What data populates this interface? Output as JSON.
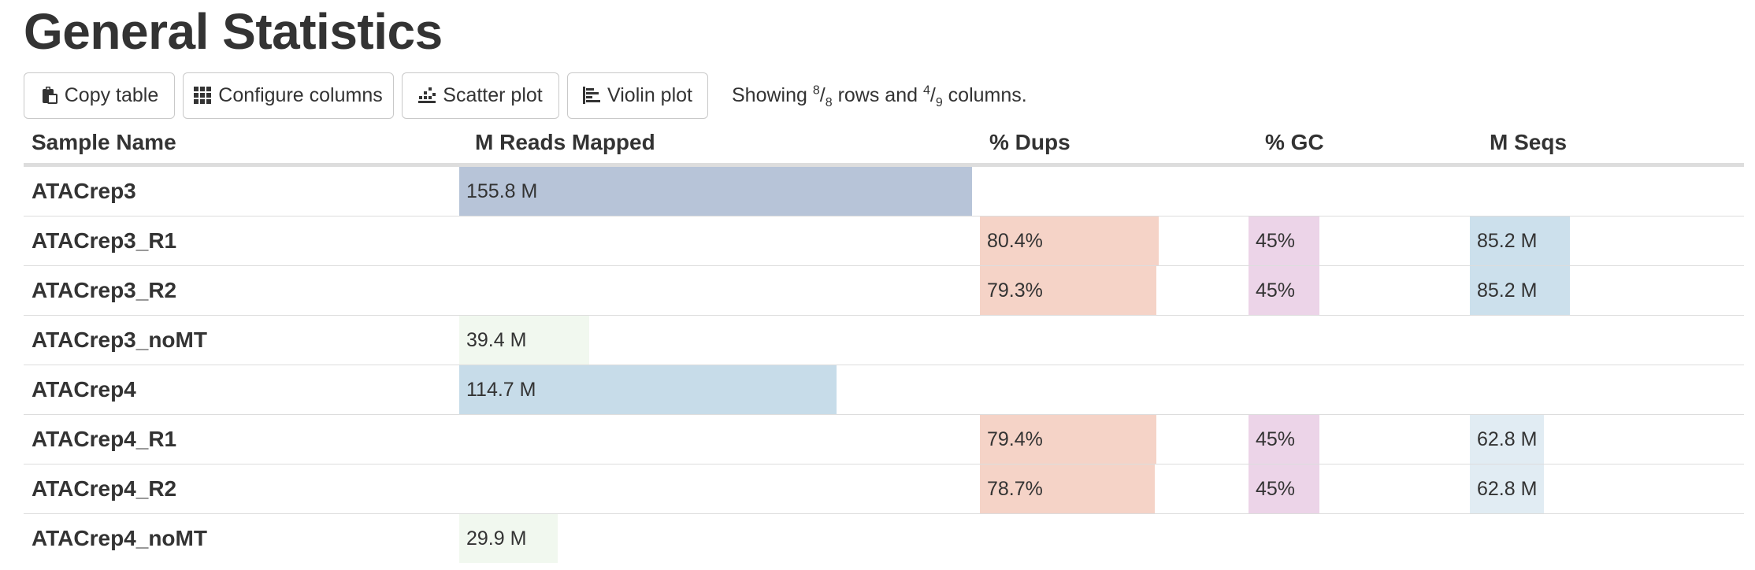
{
  "page": {
    "title": "General Statistics"
  },
  "toolbar": {
    "copy_label": "Copy table",
    "configure_label": "Configure columns",
    "scatter_label": "Scatter plot",
    "violin_label": "Violin plot",
    "showing": {
      "prefix": "Showing ",
      "rows_shown": "8",
      "rows_total": "8",
      "middle": " rows and ",
      "cols_shown": "4",
      "cols_total": "9",
      "suffix": " columns."
    }
  },
  "colors": {
    "reads_mapped_high": "#b7c4d8",
    "reads_mapped_mid": "#c7dce9",
    "reads_mapped_low": "#f1f8ef",
    "dups": "#f5d3c7",
    "gc": "#ecd4e8",
    "seqs_high": "#cce0ec",
    "seqs_low": "#e1ecf3"
  },
  "table": {
    "columns": [
      {
        "key": "sample",
        "label": "Sample Name"
      },
      {
        "key": "reads_mapped",
        "label": "M Reads Mapped"
      },
      {
        "key": "dups",
        "label": "% Dups"
      },
      {
        "key": "gc",
        "label": "% GC"
      },
      {
        "key": "seqs",
        "label": "M Seqs"
      }
    ],
    "rows": [
      {
        "sample": "ATACrep3",
        "reads_mapped": {
          "text": "155.8 M",
          "fill": 1.0,
          "color": "#b7c4d8"
        },
        "dups": null,
        "gc": null,
        "seqs": null
      },
      {
        "sample": "ATACrep3_R1",
        "reads_mapped": null,
        "dups": {
          "text": "80.4%",
          "fill": 0.804,
          "color": "#f5d3c7"
        },
        "gc": {
          "text": "45%",
          "fill": 0.45,
          "color": "#ecd4e8"
        },
        "seqs": {
          "text": "85.2 M",
          "fill": 0.547,
          "color": "#cce0ec"
        }
      },
      {
        "sample": "ATACrep3_R2",
        "reads_mapped": null,
        "dups": {
          "text": "79.3%",
          "fill": 0.793,
          "color": "#f5d3c7"
        },
        "gc": {
          "text": "45%",
          "fill": 0.45,
          "color": "#ecd4e8"
        },
        "seqs": {
          "text": "85.2 M",
          "fill": 0.547,
          "color": "#cce0ec"
        }
      },
      {
        "sample": "ATACrep3_noMT",
        "reads_mapped": {
          "text": "39.4 M",
          "fill": 0.253,
          "color": "#f1f8ef"
        },
        "dups": null,
        "gc": null,
        "seqs": null
      },
      {
        "sample": "ATACrep4",
        "reads_mapped": {
          "text": "114.7 M",
          "fill": 0.736,
          "color": "#c7dce9"
        },
        "dups": null,
        "gc": null,
        "seqs": null
      },
      {
        "sample": "ATACrep4_R1",
        "reads_mapped": null,
        "dups": {
          "text": "79.4%",
          "fill": 0.794,
          "color": "#f5d3c7"
        },
        "gc": {
          "text": "45%",
          "fill": 0.45,
          "color": "#ecd4e8"
        },
        "seqs": {
          "text": "62.8 M",
          "fill": 0.403,
          "color": "#e1ecf3"
        }
      },
      {
        "sample": "ATACrep4_R2",
        "reads_mapped": null,
        "dups": {
          "text": "78.7%",
          "fill": 0.787,
          "color": "#f5d3c7"
        },
        "gc": {
          "text": "45%",
          "fill": 0.45,
          "color": "#ecd4e8"
        },
        "seqs": {
          "text": "62.8 M",
          "fill": 0.403,
          "color": "#e1ecf3"
        }
      },
      {
        "sample": "ATACrep4_noMT",
        "reads_mapped": {
          "text": "29.9 M",
          "fill": 0.192,
          "color": "#f1f8ef"
        },
        "dups": null,
        "gc": null,
        "seqs": null
      }
    ]
  }
}
